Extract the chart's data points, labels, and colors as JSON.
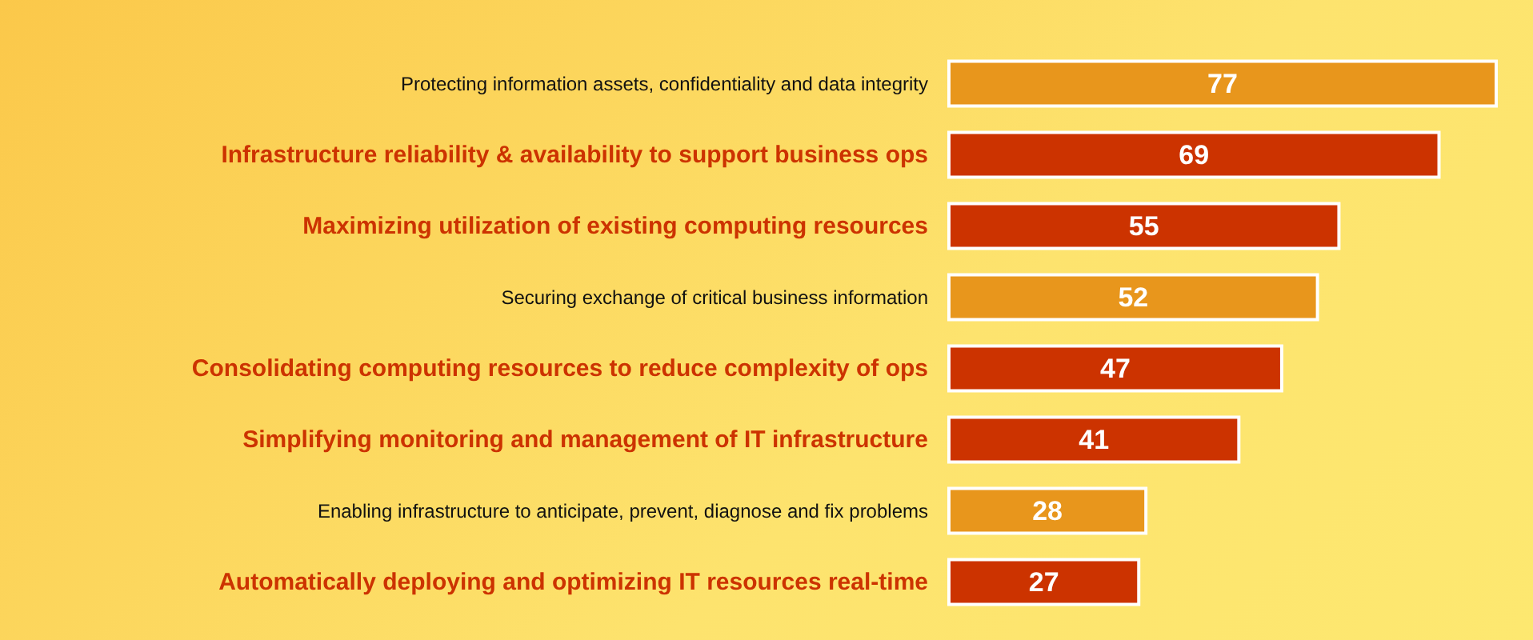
{
  "chart_data": {
    "type": "bar",
    "orientation": "horizontal",
    "categories": [
      "Protecting information assets, confidentiality and data integrity",
      "Infrastructure reliability & availability to support business ops",
      "Maximizing utilization of existing computing resources",
      "Securing exchange of critical business information",
      "Consolidating computing resources to reduce complexity of ops",
      "Simplifying monitoring and management of IT infrastructure",
      "Enabling infrastructure to anticipate, prevent, diagnose and fix problems",
      "Automatically deploying and optimizing IT resources real-time"
    ],
    "values": [
      77,
      69,
      55,
      52,
      47,
      41,
      28,
      27
    ],
    "colors": [
      "#e8961c",
      "#cc3300",
      "#cc3300",
      "#e8961c",
      "#cc3300",
      "#cc3300",
      "#e8961c",
      "#cc3300"
    ],
    "data_labels": true
  }
}
